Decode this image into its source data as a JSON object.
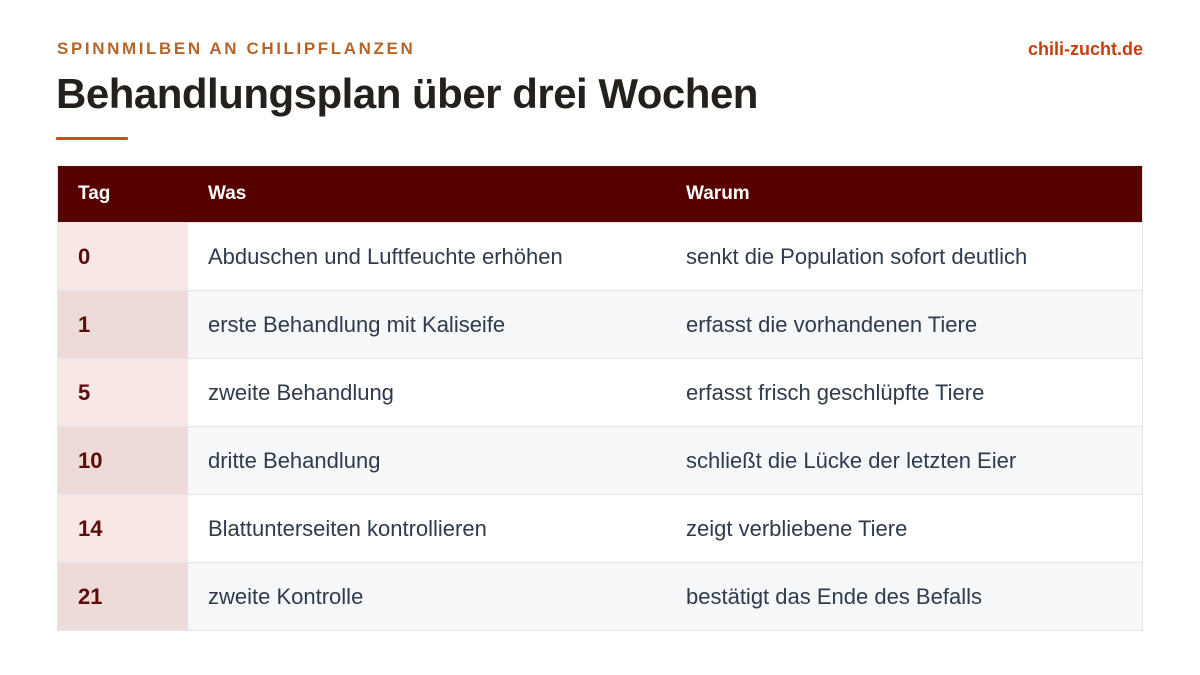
{
  "header": {
    "eyebrow": "SPINNMILBEN AN CHILIPFLANZEN",
    "brand": "chili-zucht.de",
    "title": "Behandlungsplan über drei Wochen"
  },
  "colors": {
    "accent": "#c4511e",
    "header_bg": "#560000",
    "eyebrow": "#b3652a",
    "brand": "#c4400e"
  },
  "table": {
    "columns": [
      "Tag",
      "Was",
      "Warum"
    ],
    "rows": [
      {
        "tag": "0",
        "was": "Abduschen und Luftfeuchte erhöhen",
        "warum": "senkt die Population sofort deutlich"
      },
      {
        "tag": "1",
        "was": "erste Behandlung mit Kaliseife",
        "warum": "erfasst die vorhandenen Tiere"
      },
      {
        "tag": "5",
        "was": "zweite Behandlung",
        "warum": "erfasst frisch geschlüpfte Tiere"
      },
      {
        "tag": "10",
        "was": "dritte Behandlung",
        "warum": "schließt die Lücke der letzten Eier"
      },
      {
        "tag": "14",
        "was": "Blattunterseiten kontrollieren",
        "warum": "zeigt verbliebene Tiere"
      },
      {
        "tag": "21",
        "was": "zweite Kontrolle",
        "warum": "bestätigt das Ende des Befalls"
      }
    ]
  }
}
